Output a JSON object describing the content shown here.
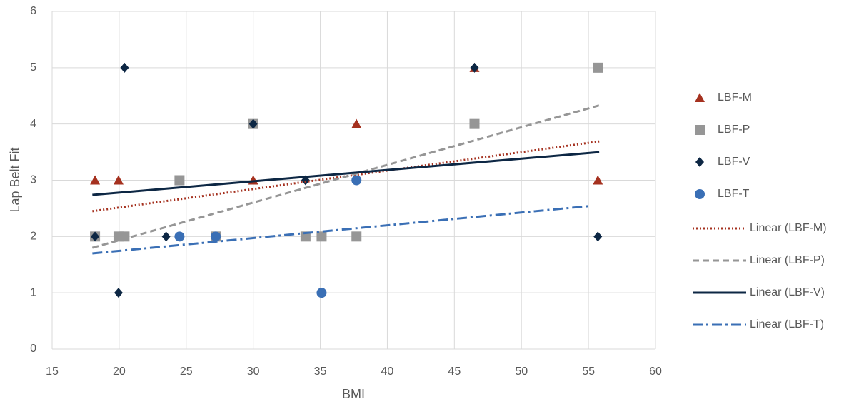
{
  "chart_data": {
    "type": "scatter",
    "x_label": "BMI",
    "y_label": "Lap Belt Fit",
    "xlim": [
      15,
      60
    ],
    "xticks": [
      15,
      20,
      25,
      30,
      35,
      40,
      45,
      50,
      55,
      60
    ],
    "ylim": [
      0,
      6
    ],
    "yticks": [
      0,
      1,
      2,
      3,
      4,
      5,
      6
    ],
    "grid": true,
    "legend": "right",
    "series": [
      {
        "name": "LBF-M",
        "color": "#a5311f",
        "marker": "triangle",
        "x": [
          18.2,
          19.95,
          30.0,
          37.7,
          46.5,
          55.7
        ],
        "values": [
          3,
          3,
          3,
          4,
          5,
          3
        ]
      },
      {
        "name": "LBF-P",
        "color": "#969696",
        "marker": "square",
        "x": [
          18.2,
          19.95,
          20.4,
          24.5,
          27.2,
          30.0,
          33.9,
          35.1,
          37.7,
          46.5,
          55.7
        ],
        "values": [
          2,
          2,
          2,
          3,
          2,
          4,
          2,
          2,
          2,
          4,
          5
        ]
      },
      {
        "name": "LBF-V",
        "color": "#0d2744",
        "marker": "diamond",
        "x": [
          18.2,
          19.95,
          20.4,
          23.5,
          27.2,
          30.0,
          33.9,
          46.5,
          55.7
        ],
        "values": [
          2,
          1,
          5,
          2,
          2,
          4,
          3,
          5,
          2
        ]
      },
      {
        "name": "LBF-T",
        "color": "#3a6fb5",
        "marker": "circle",
        "x": [
          24.5,
          27.2,
          35.1,
          37.7
        ],
        "values": [
          2,
          2,
          1,
          3
        ]
      }
    ],
    "trendlines": [
      {
        "name": "Linear (LBF-M)",
        "color": "#a5311f",
        "dash": "2 3",
        "x": [
          18,
          55.8
        ],
        "y": [
          2.45,
          3.69
        ]
      },
      {
        "name": "Linear (LBF-P)",
        "color": "#969696",
        "dash": "9 5",
        "x": [
          18,
          55.8
        ],
        "y": [
          1.8,
          4.33
        ]
      },
      {
        "name": "Linear (LBF-V)",
        "color": "#0d2744",
        "dash": "",
        "x": [
          18,
          55.8
        ],
        "y": [
          2.74,
          3.5
        ]
      },
      {
        "name": "Linear (LBF-T)",
        "color": "#3a6fb5",
        "dash": "14 5 3 5",
        "x": [
          18,
          55
        ],
        "y": [
          1.7,
          2.54
        ]
      }
    ]
  }
}
